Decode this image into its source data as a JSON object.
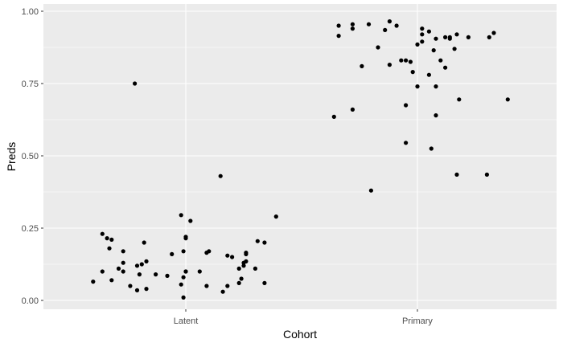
{
  "chart_data": {
    "type": "scatter",
    "title": "",
    "xlabel": "Cohort",
    "ylabel": "Preds",
    "categories": [
      "Latent",
      "Primary"
    ],
    "ylim": [
      0,
      1
    ],
    "y_ticks": [
      "0.00",
      "0.25",
      "0.50",
      "0.75",
      "1.00"
    ],
    "y_tick_values": [
      0,
      0.25,
      0.5,
      0.75,
      1.0
    ],
    "grid": true,
    "legend": "none",
    "colors": {
      "panel": "#ebebeb",
      "grid": "#ffffff",
      "point": "#000000",
      "tick_text": "#4d4d4d"
    },
    "series": [
      {
        "category": "Latent",
        "jitter": [
          -0.4,
          -0.36,
          -0.36,
          -0.34,
          -0.33,
          -0.32,
          -0.32,
          -0.29,
          -0.27,
          -0.27,
          -0.27,
          -0.24,
          -0.22,
          -0.21,
          -0.21,
          -0.2,
          -0.19,
          -0.18,
          -0.17,
          -0.17,
          -0.13,
          -0.08,
          -0.06,
          -0.02,
          -0.02,
          -0.01,
          -0.01,
          -0.01,
          0.0,
          0.0,
          0.0,
          0.0,
          0.02,
          0.06,
          0.09,
          0.09,
          0.1,
          0.15,
          0.16,
          0.18,
          0.18,
          0.2,
          0.23,
          0.23,
          0.24,
          0.25,
          0.25,
          0.26,
          0.26,
          0.26,
          0.3,
          0.31,
          0.34,
          0.34,
          0.39
        ],
        "values": [
          0.065,
          0.23,
          0.1,
          0.215,
          0.18,
          0.07,
          0.21,
          0.11,
          0.17,
          0.13,
          0.1,
          0.05,
          0.75,
          0.12,
          0.035,
          0.09,
          0.125,
          0.2,
          0.04,
          0.135,
          0.09,
          0.085,
          0.16,
          0.055,
          0.295,
          0.01,
          0.17,
          0.08,
          0.1,
          0.1,
          0.215,
          0.22,
          0.275,
          0.1,
          0.05,
          0.165,
          0.17,
          0.43,
          0.03,
          0.05,
          0.155,
          0.15,
          0.06,
          0.11,
          0.075,
          0.12,
          0.13,
          0.165,
          0.16,
          0.135,
          0.11,
          0.205,
          0.06,
          0.2,
          0.29
        ]
      },
      {
        "category": "Primary",
        "jitter": [
          -0.36,
          -0.34,
          -0.34,
          -0.28,
          -0.28,
          -0.28,
          -0.24,
          -0.21,
          -0.2,
          -0.17,
          -0.14,
          -0.12,
          -0.12,
          -0.09,
          -0.07,
          -0.05,
          -0.05,
          -0.05,
          -0.03,
          -0.02,
          0.0,
          0.0,
          0.02,
          0.02,
          0.02,
          0.05,
          0.05,
          0.06,
          0.07,
          0.08,
          0.08,
          0.08,
          0.1,
          0.12,
          0.12,
          0.14,
          0.14,
          0.16,
          0.17,
          0.17,
          0.18,
          0.22,
          0.3,
          0.31,
          0.33,
          0.39
        ],
        "values": [
          0.635,
          0.95,
          0.915,
          0.955,
          0.94,
          0.66,
          0.81,
          0.955,
          0.38,
          0.875,
          0.935,
          0.815,
          0.965,
          0.95,
          0.83,
          0.83,
          0.545,
          0.675,
          0.825,
          0.79,
          0.885,
          0.74,
          0.94,
          0.895,
          0.92,
          0.93,
          0.78,
          0.525,
          0.865,
          0.74,
          0.905,
          0.64,
          0.83,
          0.805,
          0.91,
          0.91,
          0.905,
          0.87,
          0.435,
          0.92,
          0.695,
          0.91,
          0.435,
          0.91,
          0.925,
          0.695
        ]
      }
    ]
  }
}
